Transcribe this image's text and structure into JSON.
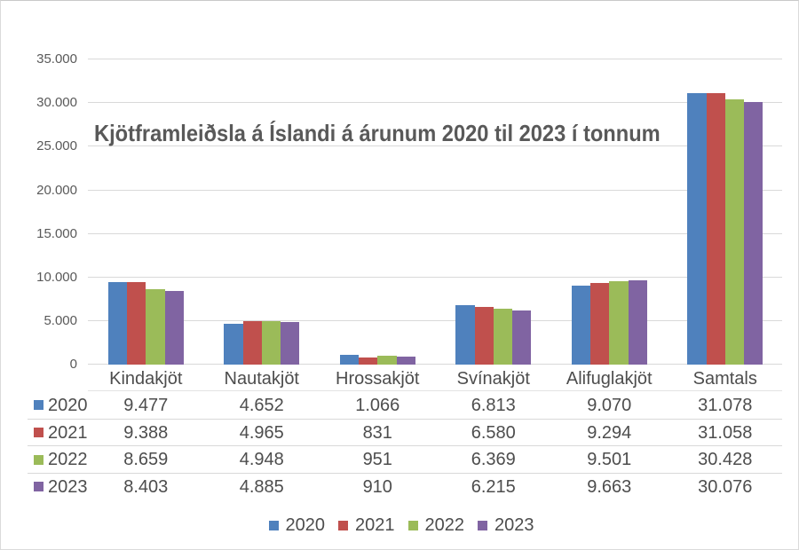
{
  "chart_data": {
    "type": "bar",
    "title": "Kjötframleiðsla á Íslandi á árunum 2020 til 2023 í tonnum",
    "categories": [
      "Kindakjöt",
      "Nautakjöt",
      "Hrossakjöt",
      "Svínakjöt",
      "Alifuglakjöt",
      "Samtals"
    ],
    "series": [
      {
        "name": "2020",
        "color": "#4f81bd",
        "values": [
          9477,
          4652,
          1066,
          6813,
          9070,
          31078
        ],
        "labels": [
          "9.477",
          "4.652",
          "1.066",
          "6.813",
          "9.070",
          "31.078"
        ]
      },
      {
        "name": "2021",
        "color": "#c0504d",
        "values": [
          9388,
          4965,
          831,
          6580,
          9294,
          31058
        ],
        "labels": [
          "9.388",
          "4.965",
          "831",
          "6.580",
          "9.294",
          "31.058"
        ]
      },
      {
        "name": "2022",
        "color": "#9bbb59",
        "values": [
          8659,
          4948,
          951,
          6369,
          9501,
          30428
        ],
        "labels": [
          "8.659",
          "4.948",
          "951",
          "6.369",
          "9.501",
          "30.428"
        ]
      },
      {
        "name": "2023",
        "color": "#8064a2",
        "values": [
          8403,
          4885,
          910,
          6215,
          9663,
          30076
        ],
        "labels": [
          "8.403",
          "4.885",
          "910",
          "6.215",
          "9.663",
          "30.076"
        ]
      }
    ],
    "y_axis": {
      "min": 0,
      "max": 35000,
      "step": 5000,
      "tick_labels": [
        "0",
        "5.000",
        "10.000",
        "15.000",
        "20.000",
        "25.000",
        "30.000",
        "35.000"
      ]
    },
    "grid": true,
    "data_table": true,
    "legend": {
      "position": "bottom",
      "entries": [
        "2020",
        "2021",
        "2022",
        "2023"
      ]
    },
    "gridline_color": "#d9d9d9",
    "text_color": "#4d4d4d",
    "axis_text_color": "#595959"
  }
}
